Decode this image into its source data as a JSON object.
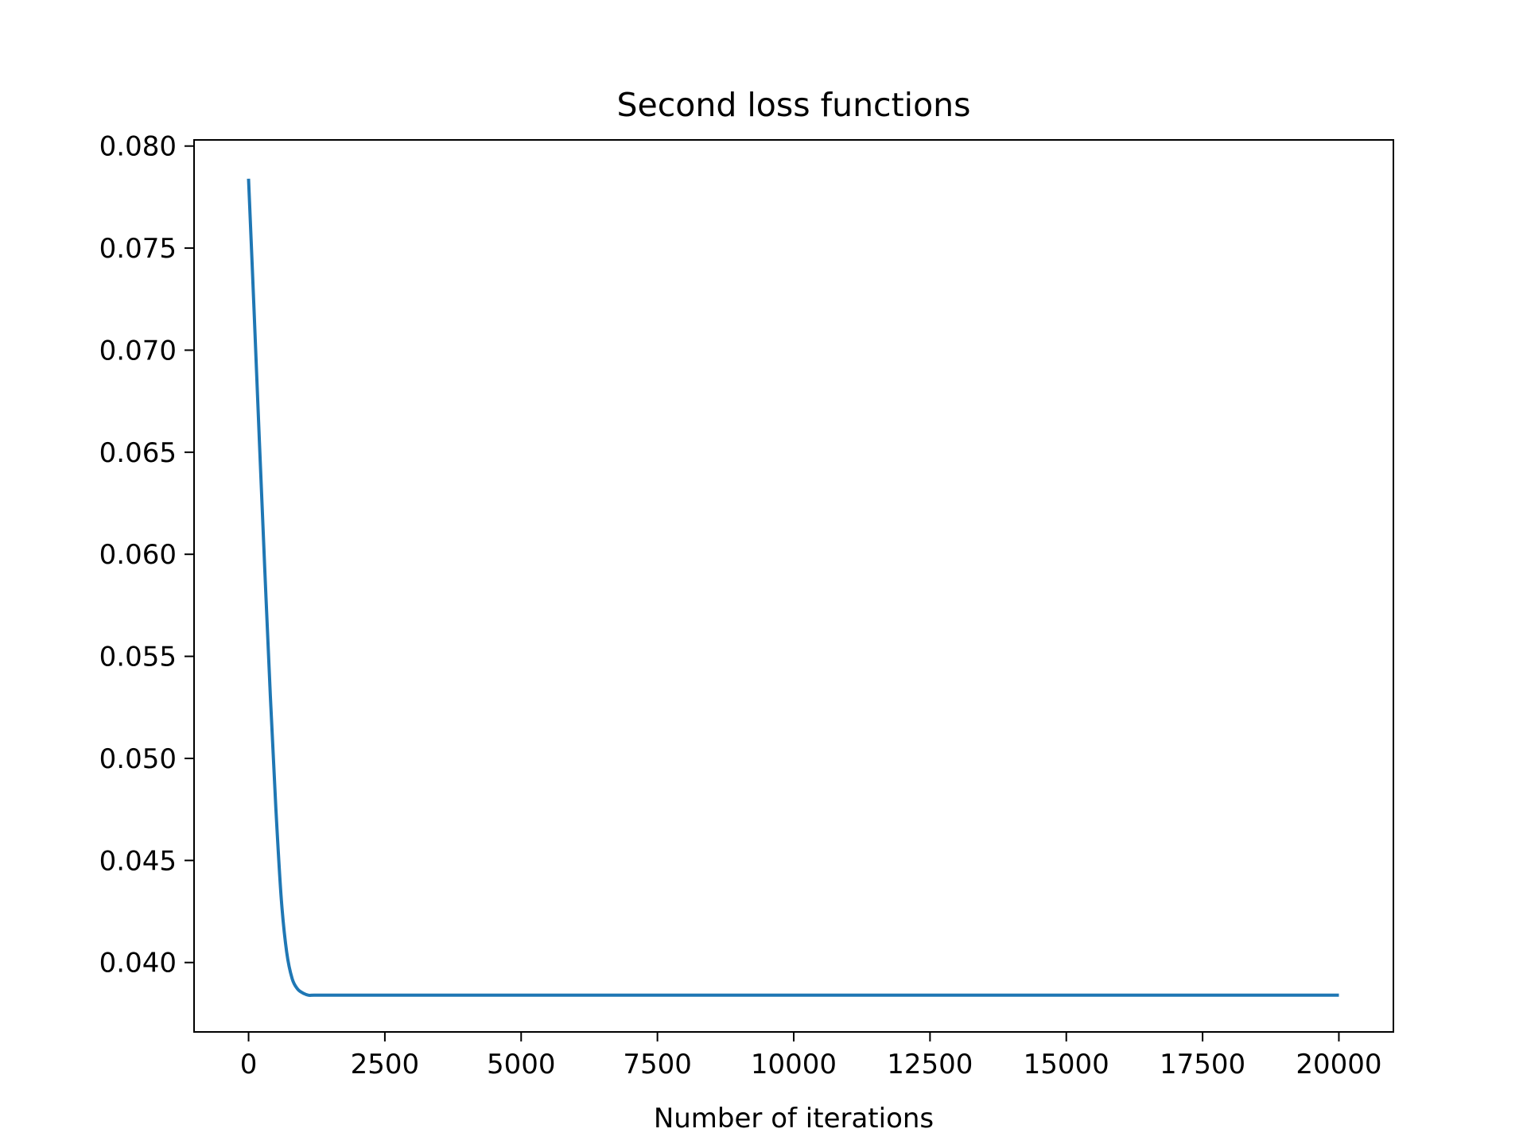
{
  "chart_data": {
    "type": "line",
    "title": "Second loss functions",
    "xlabel": "Number of iterations",
    "ylabel": "",
    "xlim": [
      -1000,
      21000
    ],
    "ylim": [
      0.0366,
      0.0803
    ],
    "x_ticks": [
      0,
      2500,
      5000,
      7500,
      10000,
      12500,
      15000,
      17500,
      20000
    ],
    "x_tick_labels": [
      "0",
      "2500",
      "5000",
      "7500",
      "10000",
      "12500",
      "15000",
      "17500",
      "20000"
    ],
    "y_ticks": [
      0.04,
      0.045,
      0.05,
      0.055,
      0.06,
      0.065,
      0.07,
      0.075,
      0.08
    ],
    "y_tick_labels": [
      "0.040",
      "0.045",
      "0.050",
      "0.055",
      "0.060",
      "0.065",
      "0.070",
      "0.075",
      "0.080"
    ],
    "grid": false,
    "series": [
      {
        "color": "#1f77b4",
        "x": [
          0,
          100,
          200,
          300,
          400,
          500,
          600,
          700,
          800,
          900,
          1000,
          1100,
          1200,
          1500,
          2000,
          3000,
          5000,
          7500,
          10000,
          12500,
          15000,
          17500,
          20000
        ],
        "y": [
          0.0784,
          0.072,
          0.0654,
          0.0591,
          0.053,
          0.0476,
          0.0431,
          0.0405,
          0.0392,
          0.0387,
          0.0385,
          0.0384,
          0.0384,
          0.0384,
          0.0384,
          0.0384,
          0.0384,
          0.0384,
          0.0384,
          0.0384,
          0.0384,
          0.0384,
          0.0384
        ]
      }
    ]
  }
}
